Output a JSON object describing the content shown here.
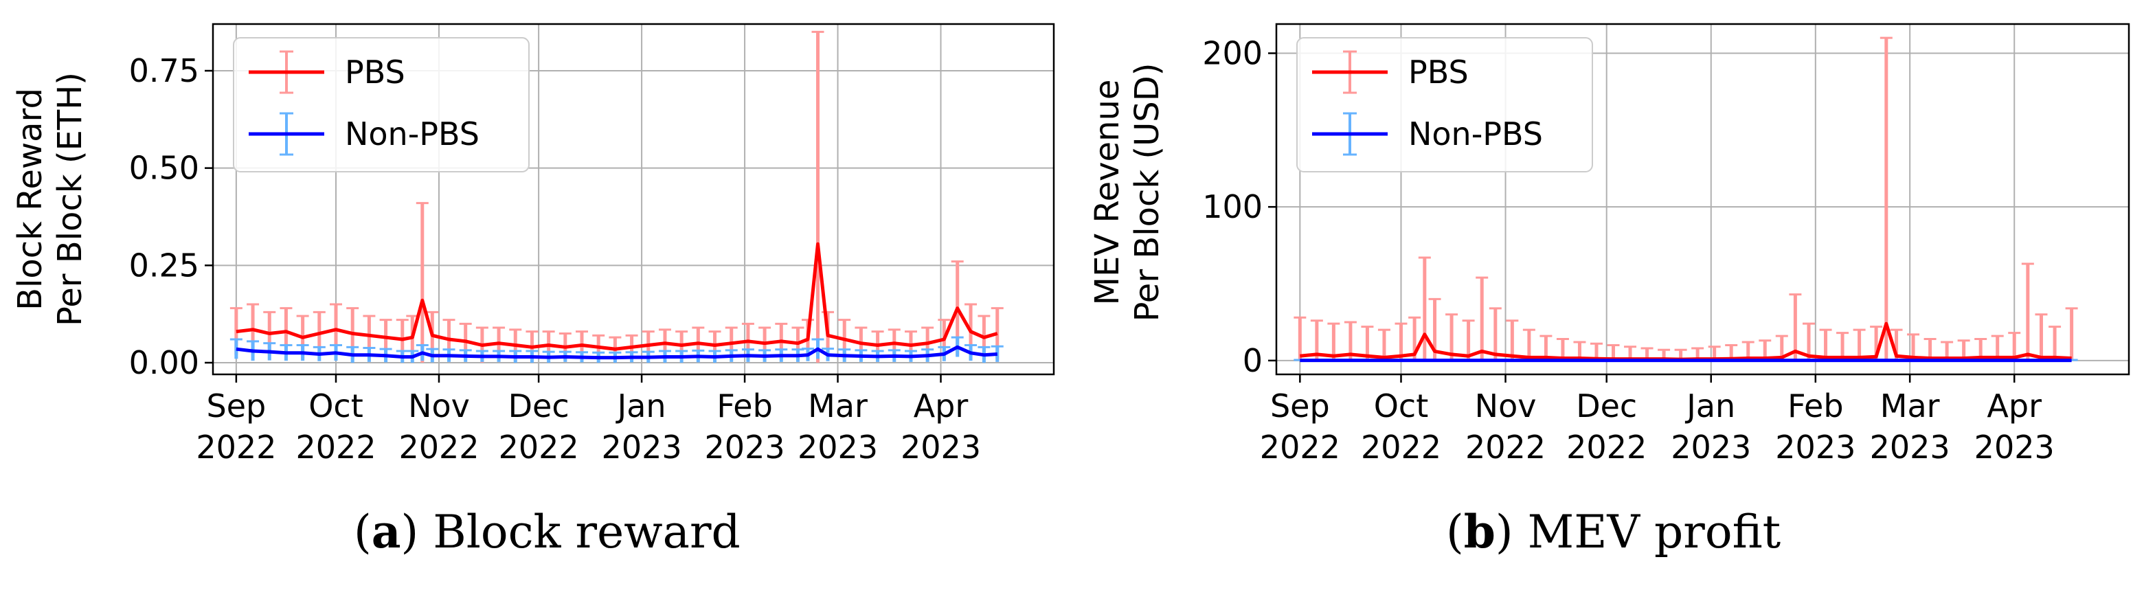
{
  "panels": [
    {
      "id": "a",
      "caption_label": "a",
      "caption_text": "Block reward",
      "ylabel_line1": "Block Reward",
      "ylabel_line2": "Per Block (ETH)"
    },
    {
      "id": "b",
      "caption_label": "b",
      "caption_text": "MEV profit",
      "ylabel_line1": "MEV Revenue",
      "ylabel_line2": "Per Block (USD)"
    }
  ],
  "chart_data": [
    {
      "type": "line",
      "xlabel": "",
      "ylabel": "Block Reward Per Block (ETH)",
      "x_ticks": [
        {
          "date": "2022-09-01",
          "line1": "Sep",
          "line2": "2022"
        },
        {
          "date": "2022-10-01",
          "line1": "Oct",
          "line2": "2022"
        },
        {
          "date": "2022-11-01",
          "line1": "Nov",
          "line2": "2022"
        },
        {
          "date": "2022-12-01",
          "line1": "Dec",
          "line2": "2022"
        },
        {
          "date": "2023-01-01",
          "line1": "Jan",
          "line2": "2023"
        },
        {
          "date": "2023-02-01",
          "line1": "Feb",
          "line2": "2023"
        },
        {
          "date": "2023-03-01",
          "line1": "Mar",
          "line2": "2023"
        },
        {
          "date": "2023-04-01",
          "line1": "Apr",
          "line2": "2023"
        }
      ],
      "xlim": [
        "2022-08-25",
        "2023-05-05"
      ],
      "ylim": [
        -0.03,
        0.87
      ],
      "y_ticks": [
        {
          "value": 0.0,
          "label": "0.00"
        },
        {
          "value": 0.25,
          "label": "0.25"
        },
        {
          "value": 0.5,
          "label": "0.50"
        },
        {
          "value": 0.75,
          "label": "0.75"
        }
      ],
      "grid": true,
      "legend_position": "top-left",
      "series": [
        {
          "name": "PBS",
          "line_color": "#ff0000",
          "error_color": "#ff9999",
          "points": [
            [
              "2022-09-01",
              0.08,
              0.14
            ],
            [
              "2022-09-06",
              0.085,
              0.15
            ],
            [
              "2022-09-11",
              0.075,
              0.13
            ],
            [
              "2022-09-16",
              0.08,
              0.14
            ],
            [
              "2022-09-21",
              0.065,
              0.12
            ],
            [
              "2022-09-26",
              0.075,
              0.13
            ],
            [
              "2022-10-01",
              0.085,
              0.15
            ],
            [
              "2022-10-06",
              0.075,
              0.14
            ],
            [
              "2022-10-11",
              0.07,
              0.12
            ],
            [
              "2022-10-16",
              0.065,
              0.11
            ],
            [
              "2022-10-21",
              0.06,
              0.11
            ],
            [
              "2022-10-24",
              0.065,
              0.12
            ],
            [
              "2022-10-27",
              0.16,
              0.41
            ],
            [
              "2022-10-30",
              0.07,
              0.13
            ],
            [
              "2022-11-04",
              0.06,
              0.11
            ],
            [
              "2022-11-09",
              0.055,
              0.1
            ],
            [
              "2022-11-14",
              0.045,
              0.09
            ],
            [
              "2022-11-19",
              0.05,
              0.09
            ],
            [
              "2022-11-24",
              0.045,
              0.085
            ],
            [
              "2022-11-29",
              0.04,
              0.08
            ],
            [
              "2022-12-04",
              0.045,
              0.08
            ],
            [
              "2022-12-09",
              0.04,
              0.075
            ],
            [
              "2022-12-14",
              0.045,
              0.08
            ],
            [
              "2022-12-19",
              0.04,
              0.07
            ],
            [
              "2022-12-24",
              0.035,
              0.065
            ],
            [
              "2022-12-29",
              0.04,
              0.07
            ],
            [
              "2023-01-03",
              0.045,
              0.08
            ],
            [
              "2023-01-08",
              0.05,
              0.085
            ],
            [
              "2023-01-13",
              0.045,
              0.08
            ],
            [
              "2023-01-18",
              0.05,
              0.09
            ],
            [
              "2023-01-23",
              0.045,
              0.08
            ],
            [
              "2023-01-28",
              0.05,
              0.09
            ],
            [
              "2023-02-02",
              0.055,
              0.1
            ],
            [
              "2023-02-07",
              0.05,
              0.09
            ],
            [
              "2023-02-12",
              0.055,
              0.1
            ],
            [
              "2023-02-17",
              0.05,
              0.09
            ],
            [
              "2023-02-20",
              0.06,
              0.11
            ],
            [
              "2023-02-23",
              0.305,
              0.85
            ],
            [
              "2023-02-26",
              0.07,
              0.13
            ],
            [
              "2023-03-03",
              0.06,
              0.11
            ],
            [
              "2023-03-08",
              0.05,
              0.09
            ],
            [
              "2023-03-13",
              0.045,
              0.08
            ],
            [
              "2023-03-18",
              0.05,
              0.085
            ],
            [
              "2023-03-23",
              0.045,
              0.08
            ],
            [
              "2023-03-28",
              0.05,
              0.09
            ],
            [
              "2023-04-02",
              0.06,
              0.11
            ],
            [
              "2023-04-06",
              0.14,
              0.26
            ],
            [
              "2023-04-10",
              0.08,
              0.15
            ],
            [
              "2023-04-14",
              0.065,
              0.12
            ],
            [
              "2023-04-18",
              0.075,
              0.14
            ]
          ]
        },
        {
          "name": "Non-PBS",
          "line_color": "#0000ff",
          "error_color": "#66b3ff",
          "points": [
            [
              "2022-09-01",
              0.035,
              0.06
            ],
            [
              "2022-09-06",
              0.03,
              0.055
            ],
            [
              "2022-09-11",
              0.028,
              0.05
            ],
            [
              "2022-09-16",
              0.025,
              0.045
            ],
            [
              "2022-09-21",
              0.025,
              0.045
            ],
            [
              "2022-09-26",
              0.022,
              0.04
            ],
            [
              "2022-10-01",
              0.025,
              0.045
            ],
            [
              "2022-10-06",
              0.02,
              0.04
            ],
            [
              "2022-10-11",
              0.02,
              0.038
            ],
            [
              "2022-10-16",
              0.018,
              0.035
            ],
            [
              "2022-10-21",
              0.015,
              0.03
            ],
            [
              "2022-10-24",
              0.015,
              0.03
            ],
            [
              "2022-10-27",
              0.025,
              0.045
            ],
            [
              "2022-10-30",
              0.018,
              0.035
            ],
            [
              "2022-11-04",
              0.018,
              0.034
            ],
            [
              "2022-11-09",
              0.017,
              0.032
            ],
            [
              "2022-11-14",
              0.016,
              0.03
            ],
            [
              "2022-11-19",
              0.016,
              0.03
            ],
            [
              "2022-11-24",
              0.015,
              0.03
            ],
            [
              "2022-11-29",
              0.015,
              0.03
            ],
            [
              "2022-12-04",
              0.014,
              0.028
            ],
            [
              "2022-12-09",
              0.015,
              0.028
            ],
            [
              "2022-12-14",
              0.014,
              0.027
            ],
            [
              "2022-12-19",
              0.013,
              0.026
            ],
            [
              "2022-12-24",
              0.013,
              0.026
            ],
            [
              "2022-12-29",
              0.014,
              0.027
            ],
            [
              "2023-01-03",
              0.014,
              0.028
            ],
            [
              "2023-01-08",
              0.015,
              0.03
            ],
            [
              "2023-01-13",
              0.015,
              0.03
            ],
            [
              "2023-01-18",
              0.016,
              0.031
            ],
            [
              "2023-01-23",
              0.015,
              0.03
            ],
            [
              "2023-01-28",
              0.017,
              0.032
            ],
            [
              "2023-02-02",
              0.018,
              0.034
            ],
            [
              "2023-02-07",
              0.017,
              0.032
            ],
            [
              "2023-02-12",
              0.018,
              0.034
            ],
            [
              "2023-02-17",
              0.018,
              0.034
            ],
            [
              "2023-02-20",
              0.02,
              0.036
            ],
            [
              "2023-02-23",
              0.035,
              0.06
            ],
            [
              "2023-02-26",
              0.02,
              0.036
            ],
            [
              "2023-03-03",
              0.018,
              0.034
            ],
            [
              "2023-03-08",
              0.017,
              0.032
            ],
            [
              "2023-03-13",
              0.016,
              0.03
            ],
            [
              "2023-03-18",
              0.017,
              0.032
            ],
            [
              "2023-03-23",
              0.016,
              0.03
            ],
            [
              "2023-03-28",
              0.018,
              0.034
            ],
            [
              "2023-04-02",
              0.022,
              0.04
            ],
            [
              "2023-04-06",
              0.04,
              0.065
            ],
            [
              "2023-04-10",
              0.025,
              0.045
            ],
            [
              "2023-04-14",
              0.02,
              0.04
            ],
            [
              "2023-04-18",
              0.022,
              0.042
            ]
          ]
        }
      ]
    },
    {
      "type": "line",
      "xlabel": "",
      "ylabel": "MEV Revenue Per Block (USD)",
      "x_ticks": [
        {
          "date": "2022-09-01",
          "line1": "Sep",
          "line2": "2022"
        },
        {
          "date": "2022-10-01",
          "line1": "Oct",
          "line2": "2022"
        },
        {
          "date": "2022-11-01",
          "line1": "Nov",
          "line2": "2022"
        },
        {
          "date": "2022-12-01",
          "line1": "Dec",
          "line2": "2022"
        },
        {
          "date": "2023-01-01",
          "line1": "Jan",
          "line2": "2023"
        },
        {
          "date": "2023-02-01",
          "line1": "Feb",
          "line2": "2023"
        },
        {
          "date": "2023-03-01",
          "line1": "Mar",
          "line2": "2023"
        },
        {
          "date": "2023-04-01",
          "line1": "Apr",
          "line2": "2023"
        }
      ],
      "xlim": [
        "2022-08-25",
        "2023-05-05"
      ],
      "ylim": [
        -9,
        219
      ],
      "y_ticks": [
        {
          "value": 0,
          "label": "0"
        },
        {
          "value": 100,
          "label": "100"
        },
        {
          "value": 200,
          "label": "200"
        }
      ],
      "grid": true,
      "legend_position": "top-left",
      "series": [
        {
          "name": "PBS",
          "line_color": "#ff0000",
          "error_color": "#ff9999",
          "points": [
            [
              "2022-09-01",
              3,
              28
            ],
            [
              "2022-09-06",
              4,
              26
            ],
            [
              "2022-09-11",
              3,
              24
            ],
            [
              "2022-09-16",
              4,
              25
            ],
            [
              "2022-09-21",
              3,
              22
            ],
            [
              "2022-09-26",
              2,
              20
            ],
            [
              "2022-10-01",
              3,
              24
            ],
            [
              "2022-10-05",
              4,
              28
            ],
            [
              "2022-10-08",
              17,
              67
            ],
            [
              "2022-10-11",
              6,
              40
            ],
            [
              "2022-10-16",
              4,
              30
            ],
            [
              "2022-10-21",
              3,
              26
            ],
            [
              "2022-10-25",
              6,
              54
            ],
            [
              "2022-10-29",
              4,
              34
            ],
            [
              "2022-11-03",
              3,
              26
            ],
            [
              "2022-11-08",
              2,
              20
            ],
            [
              "2022-11-13",
              2,
              16
            ],
            [
              "2022-11-18",
              1.5,
              14
            ],
            [
              "2022-11-23",
              1.5,
              12
            ],
            [
              "2022-11-28",
              1.2,
              11
            ],
            [
              "2022-12-03",
              1,
              10
            ],
            [
              "2022-12-08",
              1,
              9
            ],
            [
              "2022-12-13",
              1,
              8
            ],
            [
              "2022-12-18",
              1,
              7
            ],
            [
              "2022-12-23",
              0.8,
              7
            ],
            [
              "2022-12-28",
              1,
              8
            ],
            [
              "2023-01-02",
              1,
              9
            ],
            [
              "2023-01-07",
              1.2,
              10
            ],
            [
              "2023-01-12",
              1.5,
              12
            ],
            [
              "2023-01-17",
              1.5,
              13
            ],
            [
              "2023-01-22",
              2,
              16
            ],
            [
              "2023-01-26",
              6,
              43
            ],
            [
              "2023-01-30",
              3,
              24
            ],
            [
              "2023-02-04",
              2,
              20
            ],
            [
              "2023-02-09",
              2,
              18
            ],
            [
              "2023-02-14",
              2,
              20
            ],
            [
              "2023-02-19",
              2.5,
              22
            ],
            [
              "2023-02-22",
              24,
              210
            ],
            [
              "2023-02-25",
              3,
              20
            ],
            [
              "2023-03-02",
              2,
              17
            ],
            [
              "2023-03-07",
              1.5,
              14
            ],
            [
              "2023-03-12",
              1.5,
              12
            ],
            [
              "2023-03-17",
              1.5,
              13
            ],
            [
              "2023-03-22",
              2,
              14
            ],
            [
              "2023-03-27",
              2,
              16
            ],
            [
              "2023-04-01",
              2,
              18
            ],
            [
              "2023-04-05",
              4,
              63
            ],
            [
              "2023-04-09",
              2,
              30
            ],
            [
              "2023-04-13",
              2,
              22
            ],
            [
              "2023-04-18",
              1.5,
              34
            ]
          ]
        },
        {
          "name": "Non-PBS",
          "line_color": "#0000ff",
          "error_color": "#66b3ff",
          "points": [
            [
              "2022-09-01",
              0.1,
              0.4
            ],
            [
              "2022-09-15",
              0.1,
              0.4
            ],
            [
              "2022-10-01",
              0.1,
              0.4
            ],
            [
              "2022-10-15",
              0.1,
              0.4
            ],
            [
              "2022-11-01",
              0.1,
              0.4
            ],
            [
              "2022-11-15",
              0.1,
              0.4
            ],
            [
              "2022-12-01",
              0.1,
              0.4
            ],
            [
              "2022-12-15",
              0.1,
              0.4
            ],
            [
              "2023-01-01",
              0.1,
              0.4
            ],
            [
              "2023-01-15",
              0.1,
              0.4
            ],
            [
              "2023-02-01",
              0.1,
              0.4
            ],
            [
              "2023-02-15",
              0.1,
              0.4
            ],
            [
              "2023-03-01",
              0.1,
              0.4
            ],
            [
              "2023-03-15",
              0.1,
              0.4
            ],
            [
              "2023-04-01",
              0.1,
              0.4
            ],
            [
              "2023-04-18",
              0.1,
              0.4
            ]
          ]
        }
      ]
    }
  ]
}
